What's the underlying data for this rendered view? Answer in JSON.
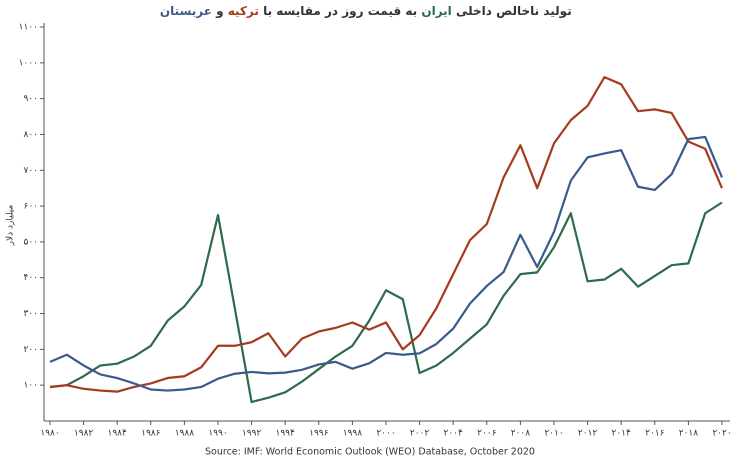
{
  "chart_data": {
    "type": "line",
    "title_parts": [
      "تولید ناخالص داخلی ",
      " به قیمت روز در مقایسه با ",
      " و "
    ],
    "y_label": "میلیارد دلار",
    "source": "Source: IMF: World Economic Outlook (WEO) Database, October 2020",
    "x": [
      1980,
      1981,
      1982,
      1983,
      1984,
      1985,
      1986,
      1987,
      1988,
      1989,
      1990,
      1991,
      1992,
      1993,
      1994,
      1995,
      1996,
      1997,
      1998,
      1999,
      2000,
      2001,
      2002,
      2003,
      2004,
      2005,
      2006,
      2007,
      2008,
      2009,
      2010,
      2011,
      2012,
      2013,
      2014,
      2015,
      2016,
      2017,
      2018,
      2019,
      2020
    ],
    "series": [
      {
        "name": "ایران",
        "color": "#2e6b4a",
        "values": [
          95,
          100,
          125,
          155,
          160,
          180,
          210,
          280,
          320,
          380,
          575,
          315,
          53,
          65,
          80,
          110,
          145,
          180,
          210,
          280,
          365,
          340,
          134,
          155,
          190,
          230,
          270,
          350,
          410,
          415,
          485,
          580,
          390,
          395,
          425,
          375,
          405,
          435,
          440,
          580,
          610
        ]
      },
      {
        "name": "ترکیه",
        "color": "#a53a1e",
        "values": [
          95,
          100,
          90,
          85,
          82,
          95,
          105,
          120,
          125,
          150,
          210,
          210,
          220,
          245,
          180,
          230,
          250,
          260,
          275,
          255,
          275,
          200,
          240,
          315,
          410,
          505,
          550,
          680,
          770,
          650,
          775,
          840,
          880,
          960,
          940,
          865,
          870,
          860,
          780,
          760,
          650
        ]
      },
      {
        "name": "عربستان",
        "color": "#3a5a8c",
        "values": [
          165,
          185,
          155,
          130,
          120,
          105,
          88,
          85,
          88,
          95,
          118,
          132,
          137,
          133,
          135,
          143,
          158,
          165,
          146,
          161,
          190,
          185,
          189,
          215,
          258,
          328,
          377,
          416,
          520,
          430,
          528,
          671,
          736,
          747,
          756,
          654,
          645,
          689,
          787,
          793,
          680
        ]
      }
    ],
    "xlim": [
      1980,
      2020
    ],
    "ylim": [
      0,
      1100
    ],
    "xticks": [
      {
        "value": 1980,
        "label": "۱۹۸۰"
      },
      {
        "value": 1982,
        "label": "۱۹۸۲"
      },
      {
        "value": 1984,
        "label": "۱۹۸۴"
      },
      {
        "value": 1986,
        "label": "۱۹۸۶"
      },
      {
        "value": 1988,
        "label": "۱۹۸۸"
      },
      {
        "value": 1990,
        "label": "۱۹۹۰"
      },
      {
        "value": 1992,
        "label": "۱۹۹۲"
      },
      {
        "value": 1994,
        "label": "۱۹۹۴"
      },
      {
        "value": 1996,
        "label": "۱۹۹۶"
      },
      {
        "value": 1998,
        "label": "۱۹۹۸"
      },
      {
        "value": 2000,
        "label": "۲۰۰۰"
      },
      {
        "value": 2002,
        "label": "۲۰۰۲"
      },
      {
        "value": 2004,
        "label": "۲۰۰۴"
      },
      {
        "value": 2006,
        "label": "۲۰۰۶"
      },
      {
        "value": 2008,
        "label": "۲۰۰۸"
      },
      {
        "value": 2010,
        "label": "۲۰۱۰"
      },
      {
        "value": 2012,
        "label": "۲۰۱۲"
      },
      {
        "value": 2014,
        "label": "۲۰۱۴"
      },
      {
        "value": 2016,
        "label": "۲۰۱۶"
      },
      {
        "value": 2018,
        "label": "۲۰۱۸"
      },
      {
        "value": 2020,
        "label": "۲۰۲۰"
      }
    ],
    "yticks": [
      {
        "value": 100,
        "label": "۱۰۰"
      },
      {
        "value": 200,
        "label": "۲۰۰"
      },
      {
        "value": 300,
        "label": "۳۰۰"
      },
      {
        "value": 400,
        "label": "۴۰۰"
      },
      {
        "value": 500,
        "label": "۵۰۰"
      },
      {
        "value": 600,
        "label": "۶۰۰"
      },
      {
        "value": 700,
        "label": "۷۰۰"
      },
      {
        "value": 800,
        "label": "۸۰۰"
      },
      {
        "value": 900,
        "label": "۹۰۰"
      },
      {
        "value": 1000,
        "label": "۱۰۰۰"
      },
      {
        "value": 1100,
        "label": "۱۱۰۰"
      }
    ],
    "grid": false
  }
}
